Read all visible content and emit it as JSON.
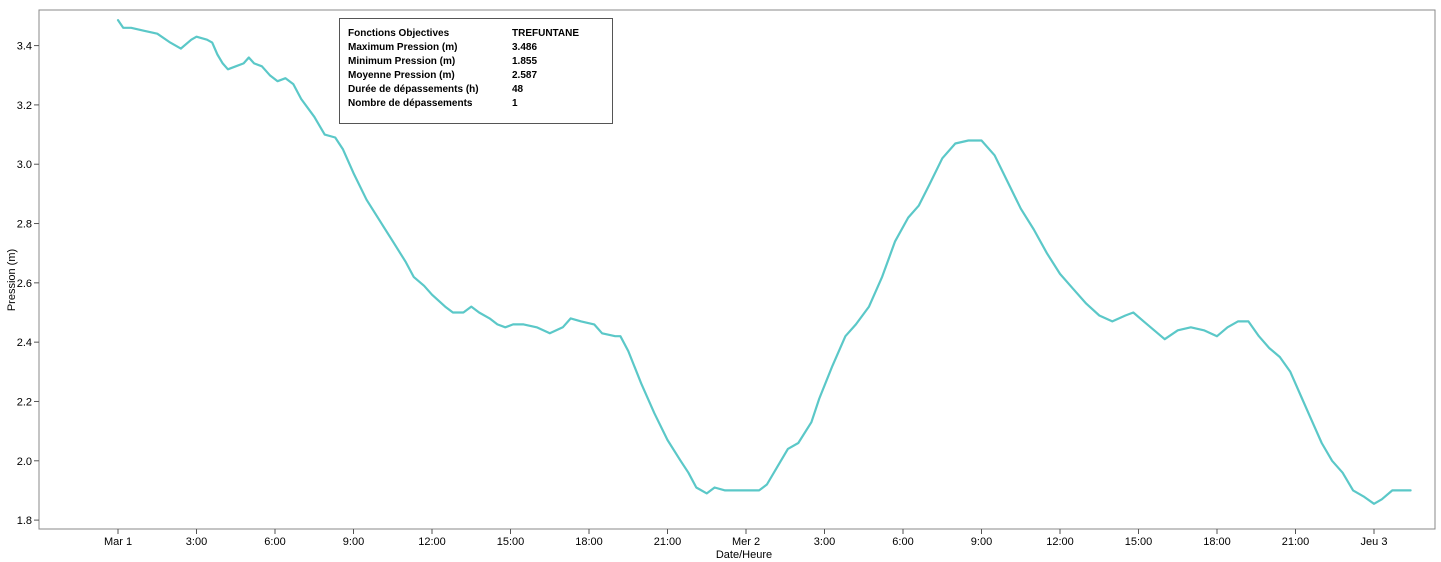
{
  "info_box": {
    "rows": [
      {
        "label": "Fonctions Objectives",
        "value": "TREFUNTANE"
      },
      {
        "label": "Maximum Pression (m)",
        "value": "3.486"
      },
      {
        "label": "Minimum Pression (m)",
        "value": "1.855"
      },
      {
        "label": "Moyenne Pression (m)",
        "value": "2.587"
      },
      {
        "label": "Durée de dépassements (h)",
        "value": "48"
      },
      {
        "label": "Nombre de dépassements",
        "value": "1"
      }
    ]
  },
  "chart_data": {
    "type": "line",
    "xlabel": "Date/Heure",
    "ylabel": "Pression (m)",
    "xlim": [
      0,
      48
    ],
    "ylim": [
      1.77,
      3.52
    ],
    "x_unit": "hours since Mar 1 00:00",
    "x_ticks": [
      {
        "x": 0,
        "label": "Mar 1"
      },
      {
        "x": 3,
        "label": "3:00"
      },
      {
        "x": 6,
        "label": "6:00"
      },
      {
        "x": 9,
        "label": "9:00"
      },
      {
        "x": 12,
        "label": "12:00"
      },
      {
        "x": 15,
        "label": "15:00"
      },
      {
        "x": 18,
        "label": "18:00"
      },
      {
        "x": 21,
        "label": "21:00"
      },
      {
        "x": 24,
        "label": "Mer 2"
      },
      {
        "x": 27,
        "label": "3:00"
      },
      {
        "x": 30,
        "label": "6:00"
      },
      {
        "x": 33,
        "label": "9:00"
      },
      {
        "x": 36,
        "label": "12:00"
      },
      {
        "x": 39,
        "label": "15:00"
      },
      {
        "x": 42,
        "label": "18:00"
      },
      {
        "x": 45,
        "label": "21:00"
      },
      {
        "x": 48,
        "label": "Jeu 3"
      }
    ],
    "y_ticks": [
      {
        "y": 1.8,
        "label": "1.8"
      },
      {
        "y": 2.0,
        "label": "2.0"
      },
      {
        "y": 2.2,
        "label": "2.2"
      },
      {
        "y": 2.4,
        "label": "2.4"
      },
      {
        "y": 2.6,
        "label": "2.6"
      },
      {
        "y": 2.8,
        "label": "2.8"
      },
      {
        "y": 3.0,
        "label": "3.0"
      },
      {
        "y": 3.2,
        "label": "3.2"
      },
      {
        "y": 3.4,
        "label": "3.4"
      }
    ],
    "series": [
      {
        "color": "#5bc8c8",
        "points": [
          [
            0.0,
            3.486
          ],
          [
            0.2,
            3.46
          ],
          [
            0.5,
            3.46
          ],
          [
            1.0,
            3.45
          ],
          [
            1.5,
            3.44
          ],
          [
            2.0,
            3.41
          ],
          [
            2.4,
            3.39
          ],
          [
            2.8,
            3.42
          ],
          [
            3.0,
            3.43
          ],
          [
            3.4,
            3.42
          ],
          [
            3.6,
            3.41
          ],
          [
            3.8,
            3.37
          ],
          [
            4.0,
            3.34
          ],
          [
            4.2,
            3.32
          ],
          [
            4.5,
            3.33
          ],
          [
            4.8,
            3.34
          ],
          [
            5.0,
            3.36
          ],
          [
            5.2,
            3.34
          ],
          [
            5.5,
            3.33
          ],
          [
            5.8,
            3.3
          ],
          [
            6.1,
            3.28
          ],
          [
            6.4,
            3.29
          ],
          [
            6.7,
            3.27
          ],
          [
            7.0,
            3.22
          ],
          [
            7.5,
            3.16
          ],
          [
            7.9,
            3.1
          ],
          [
            8.3,
            3.09
          ],
          [
            8.6,
            3.05
          ],
          [
            9.0,
            2.97
          ],
          [
            9.5,
            2.88
          ],
          [
            10.0,
            2.81
          ],
          [
            10.5,
            2.74
          ],
          [
            11.0,
            2.67
          ],
          [
            11.3,
            2.62
          ],
          [
            11.7,
            2.59
          ],
          [
            12.0,
            2.56
          ],
          [
            12.5,
            2.52
          ],
          [
            12.8,
            2.5
          ],
          [
            13.2,
            2.5
          ],
          [
            13.5,
            2.52
          ],
          [
            13.8,
            2.5
          ],
          [
            14.2,
            2.48
          ],
          [
            14.5,
            2.46
          ],
          [
            14.8,
            2.45
          ],
          [
            15.1,
            2.46
          ],
          [
            15.5,
            2.46
          ],
          [
            16.0,
            2.45
          ],
          [
            16.5,
            2.43
          ],
          [
            17.0,
            2.45
          ],
          [
            17.3,
            2.48
          ],
          [
            17.7,
            2.47
          ],
          [
            18.2,
            2.46
          ],
          [
            18.5,
            2.43
          ],
          [
            19.0,
            2.42
          ],
          [
            19.2,
            2.42
          ],
          [
            19.5,
            2.37
          ],
          [
            20.0,
            2.26
          ],
          [
            20.5,
            2.16
          ],
          [
            21.0,
            2.07
          ],
          [
            21.5,
            2.0
          ],
          [
            21.8,
            1.96
          ],
          [
            22.1,
            1.91
          ],
          [
            22.5,
            1.89
          ],
          [
            22.8,
            1.91
          ],
          [
            23.2,
            1.9
          ],
          [
            23.6,
            1.9
          ],
          [
            24.0,
            1.9
          ],
          [
            24.5,
            1.9
          ],
          [
            24.8,
            1.92
          ],
          [
            25.2,
            1.98
          ],
          [
            25.6,
            2.04
          ],
          [
            26.0,
            2.06
          ],
          [
            26.5,
            2.13
          ],
          [
            26.8,
            2.21
          ],
          [
            27.3,
            2.32
          ],
          [
            27.8,
            2.42
          ],
          [
            28.2,
            2.46
          ],
          [
            28.7,
            2.52
          ],
          [
            29.2,
            2.62
          ],
          [
            29.7,
            2.74
          ],
          [
            30.2,
            2.82
          ],
          [
            30.6,
            2.86
          ],
          [
            31.0,
            2.93
          ],
          [
            31.5,
            3.02
          ],
          [
            32.0,
            3.07
          ],
          [
            32.5,
            3.08
          ],
          [
            33.0,
            3.08
          ],
          [
            33.5,
            3.03
          ],
          [
            34.0,
            2.94
          ],
          [
            34.5,
            2.85
          ],
          [
            35.0,
            2.78
          ],
          [
            35.5,
            2.7
          ],
          [
            36.0,
            2.63
          ],
          [
            36.5,
            2.58
          ],
          [
            37.0,
            2.53
          ],
          [
            37.5,
            2.49
          ],
          [
            38.0,
            2.47
          ],
          [
            38.5,
            2.49
          ],
          [
            38.8,
            2.5
          ],
          [
            39.2,
            2.47
          ],
          [
            39.6,
            2.44
          ],
          [
            40.0,
            2.41
          ],
          [
            40.5,
            2.44
          ],
          [
            41.0,
            2.45
          ],
          [
            41.5,
            2.44
          ],
          [
            42.0,
            2.42
          ],
          [
            42.4,
            2.45
          ],
          [
            42.8,
            2.47
          ],
          [
            43.2,
            2.47
          ],
          [
            43.6,
            2.42
          ],
          [
            44.0,
            2.38
          ],
          [
            44.4,
            2.35
          ],
          [
            44.8,
            2.3
          ],
          [
            45.2,
            2.22
          ],
          [
            45.6,
            2.14
          ],
          [
            46.0,
            2.06
          ],
          [
            46.4,
            2.0
          ],
          [
            46.8,
            1.96
          ],
          [
            47.2,
            1.9
          ],
          [
            47.6,
            1.88
          ],
          [
            48.0,
            1.855
          ],
          [
            48.3,
            1.87
          ],
          [
            48.7,
            1.9
          ],
          [
            49.0,
            1.9
          ],
          [
            49.4,
            1.9
          ]
        ]
      }
    ]
  }
}
